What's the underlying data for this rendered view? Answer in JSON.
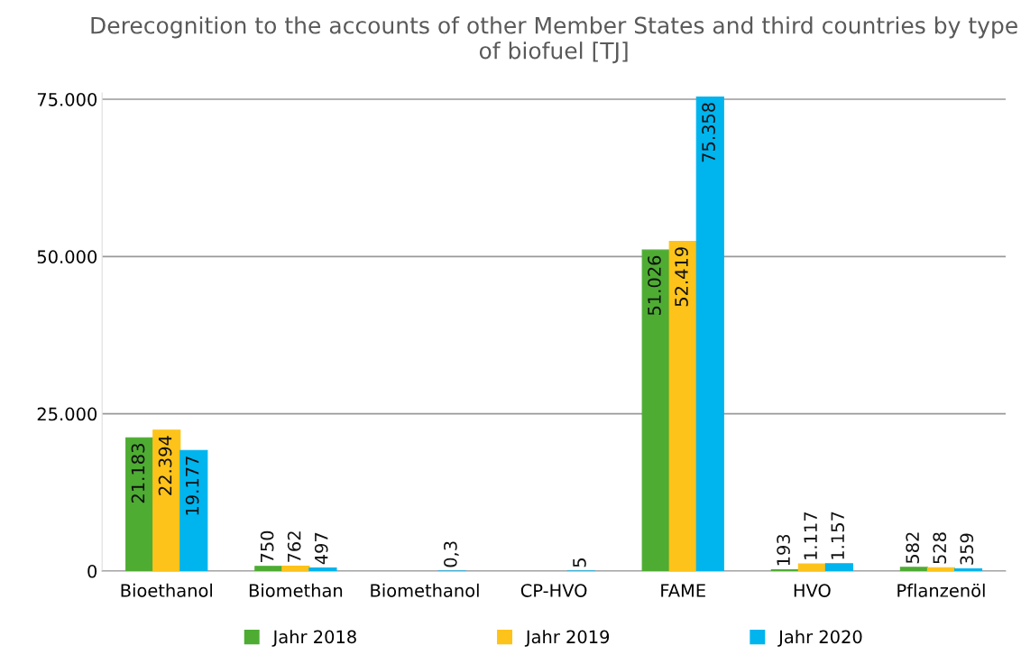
{
  "chart_data": {
    "type": "bar",
    "title": "Derecognition to the accounts of other Member States and third countries by type of biofuel [TJ]",
    "categories": [
      "Bioethanol",
      "Biomethan",
      "Biomethanol",
      "CP-HVO",
      "FAME",
      "HVO",
      "Pflanzenöl"
    ],
    "series": [
      {
        "name": "Jahr 2018",
        "color": "#4eac33",
        "values": [
          21183,
          750,
          null,
          null,
          51026,
          193,
          582
        ],
        "value_labels": [
          "21.183",
          "750",
          null,
          null,
          "51.026",
          "193",
          "582"
        ]
      },
      {
        "name": "Jahr 2019",
        "color": "#fdc31a",
        "values": [
          22394,
          762,
          null,
          null,
          52419,
          1117,
          528
        ],
        "value_labels": [
          "22.394",
          "762",
          null,
          null,
          "52.419",
          "1.117",
          "528"
        ]
      },
      {
        "name": "Jahr 2020",
        "color": "#00b4ee",
        "values": [
          19177,
          497,
          0.3,
          5,
          75358,
          1157,
          359
        ],
        "value_labels": [
          "19.177",
          "497",
          "0,3",
          "5",
          "75.358",
          "1.157",
          "359"
        ]
      }
    ],
    "ylim": [
      0,
      76000
    ],
    "yticks": [
      0,
      {
        "value": 25000,
        "label": "25.000"
      },
      {
        "value": 50000,
        "label": "50.000"
      },
      {
        "value": 75000,
        "label": "75.000"
      }
    ],
    "grid": "y",
    "legend": "bottom"
  }
}
